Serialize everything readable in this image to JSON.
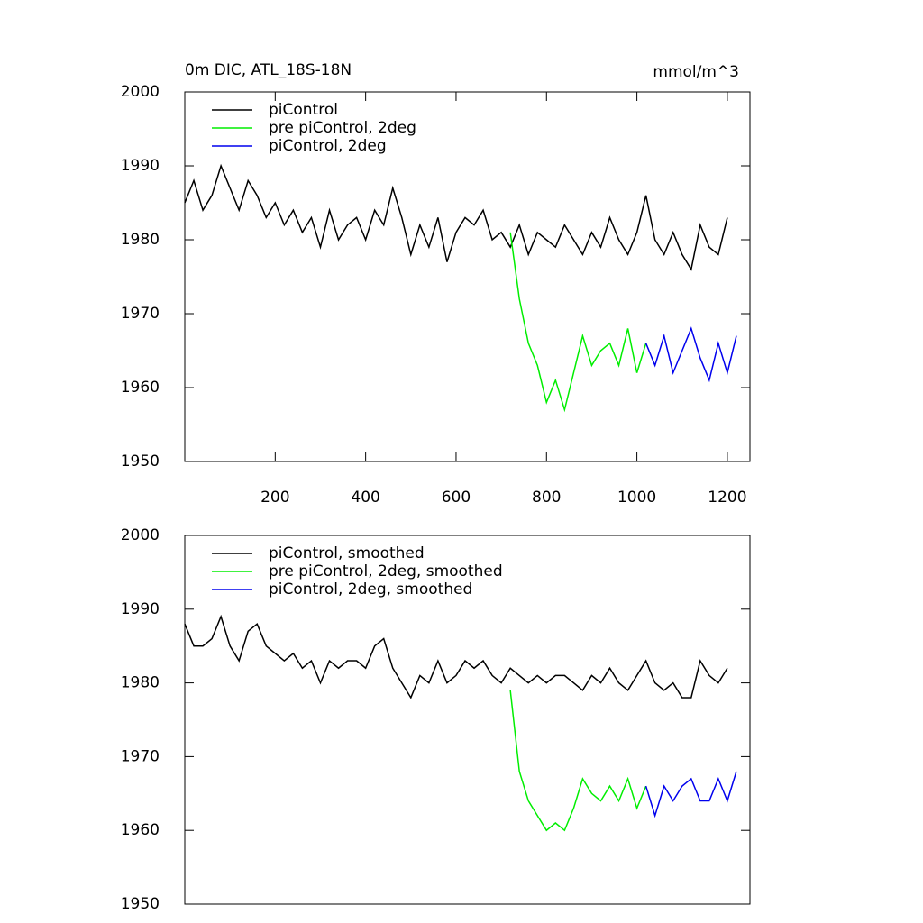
{
  "chart_data": [
    {
      "type": "line",
      "title": "0m DIC, ATL_18S-18N",
      "units": "mmol/m^3",
      "xlim": [
        0,
        1250
      ],
      "ylim": [
        1950,
        2000
      ],
      "xticks": [
        200,
        400,
        600,
        800,
        1000,
        1200
      ],
      "yticks": [
        1950,
        1960,
        1970,
        1980,
        1990,
        2000
      ],
      "series": [
        {
          "name": "piControl",
          "color": "#000000",
          "x": [
            0,
            20,
            40,
            60,
            80,
            100,
            120,
            140,
            160,
            180,
            200,
            220,
            240,
            260,
            280,
            300,
            320,
            340,
            360,
            380,
            400,
            420,
            440,
            460,
            480,
            500,
            520,
            540,
            560,
            580,
            600,
            620,
            640,
            660,
            680,
            700,
            720,
            740,
            760,
            780,
            800,
            820,
            840,
            860,
            880,
            900,
            920,
            940,
            960,
            980,
            1000,
            1020,
            1040,
            1060,
            1080,
            1100,
            1120,
            1140,
            1160,
            1180,
            1200
          ],
          "values": [
            1985,
            1988,
            1984,
            1986,
            1990,
            1987,
            1984,
            1988,
            1986,
            1983,
            1985,
            1982,
            1984,
            1981,
            1983,
            1979,
            1984,
            1980,
            1982,
            1983,
            1980,
            1984,
            1982,
            1987,
            1983,
            1978,
            1982,
            1979,
            1983,
            1977,
            1981,
            1983,
            1982,
            1984,
            1980,
            1981,
            1979,
            1982,
            1978,
            1981,
            1980,
            1979,
            1982,
            1980,
            1978,
            1981,
            1979,
            1983,
            1980,
            1978,
            1981,
            1986,
            1980,
            1978,
            1981,
            1978,
            1976,
            1982,
            1979,
            1978,
            1983
          ]
        },
        {
          "name": "pre piControl, 2deg",
          "color": "#00ee00",
          "x": [
            720,
            740,
            760,
            780,
            800,
            820,
            840,
            860,
            880,
            900,
            920,
            940,
            960,
            980,
            1000,
            1020
          ],
          "values": [
            1981,
            1972,
            1966,
            1963,
            1958,
            1961,
            1957,
            1962,
            1967,
            1963,
            1965,
            1966,
            1963,
            1968,
            1962,
            1966
          ]
        },
        {
          "name": "piControl, 2deg",
          "color": "#0000ee",
          "x": [
            1020,
            1040,
            1060,
            1080,
            1100,
            1120,
            1140,
            1160,
            1180,
            1200,
            1220
          ],
          "values": [
            1966,
            1963,
            1967,
            1962,
            1965,
            1968,
            1964,
            1961,
            1966,
            1962,
            1967
          ]
        }
      ]
    },
    {
      "type": "line",
      "xlim": [
        0,
        1250
      ],
      "ylim": [
        1950,
        2000
      ],
      "yticks": [
        1950,
        1960,
        1970,
        1980,
        1990,
        2000
      ],
      "series": [
        {
          "name": "piControl, smoothed",
          "color": "#000000",
          "x": [
            0,
            20,
            40,
            60,
            80,
            100,
            120,
            140,
            160,
            180,
            200,
            220,
            240,
            260,
            280,
            300,
            320,
            340,
            360,
            380,
            400,
            420,
            440,
            460,
            480,
            500,
            520,
            540,
            560,
            580,
            600,
            620,
            640,
            660,
            680,
            700,
            720,
            740,
            760,
            780,
            800,
            820,
            840,
            860,
            880,
            900,
            920,
            940,
            960,
            980,
            1000,
            1020,
            1040,
            1060,
            1080,
            1100,
            1120,
            1140,
            1160,
            1180,
            1200
          ],
          "values": [
            1988,
            1985,
            1985,
            1986,
            1989,
            1985,
            1983,
            1987,
            1988,
            1985,
            1984,
            1983,
            1984,
            1982,
            1983,
            1980,
            1983,
            1982,
            1983,
            1983,
            1982,
            1985,
            1986,
            1982,
            1980,
            1978,
            1981,
            1980,
            1983,
            1980,
            1981,
            1983,
            1982,
            1983,
            1981,
            1980,
            1982,
            1981,
            1980,
            1981,
            1980,
            1981,
            1981,
            1980,
            1979,
            1981,
            1980,
            1982,
            1980,
            1979,
            1981,
            1983,
            1980,
            1979,
            1980,
            1978,
            1978,
            1983,
            1981,
            1980,
            1982
          ]
        },
        {
          "name": "pre piControl, 2deg, smoothed",
          "color": "#00ee00",
          "x": [
            720,
            740,
            760,
            780,
            800,
            820,
            840,
            860,
            880,
            900,
            920,
            940,
            960,
            980,
            1000,
            1020
          ],
          "values": [
            1979,
            1968,
            1964,
            1962,
            1960,
            1961,
            1960,
            1963,
            1967,
            1965,
            1964,
            1966,
            1964,
            1967,
            1963,
            1966
          ]
        },
        {
          "name": "piControl, 2deg, smoothed",
          "color": "#0000ee",
          "x": [
            1020,
            1040,
            1060,
            1080,
            1100,
            1120,
            1140,
            1160,
            1180,
            1200,
            1220
          ],
          "values": [
            1966,
            1962,
            1966,
            1964,
            1966,
            1967,
            1964,
            1964,
            1967,
            1964,
            1968
          ]
        }
      ]
    }
  ]
}
